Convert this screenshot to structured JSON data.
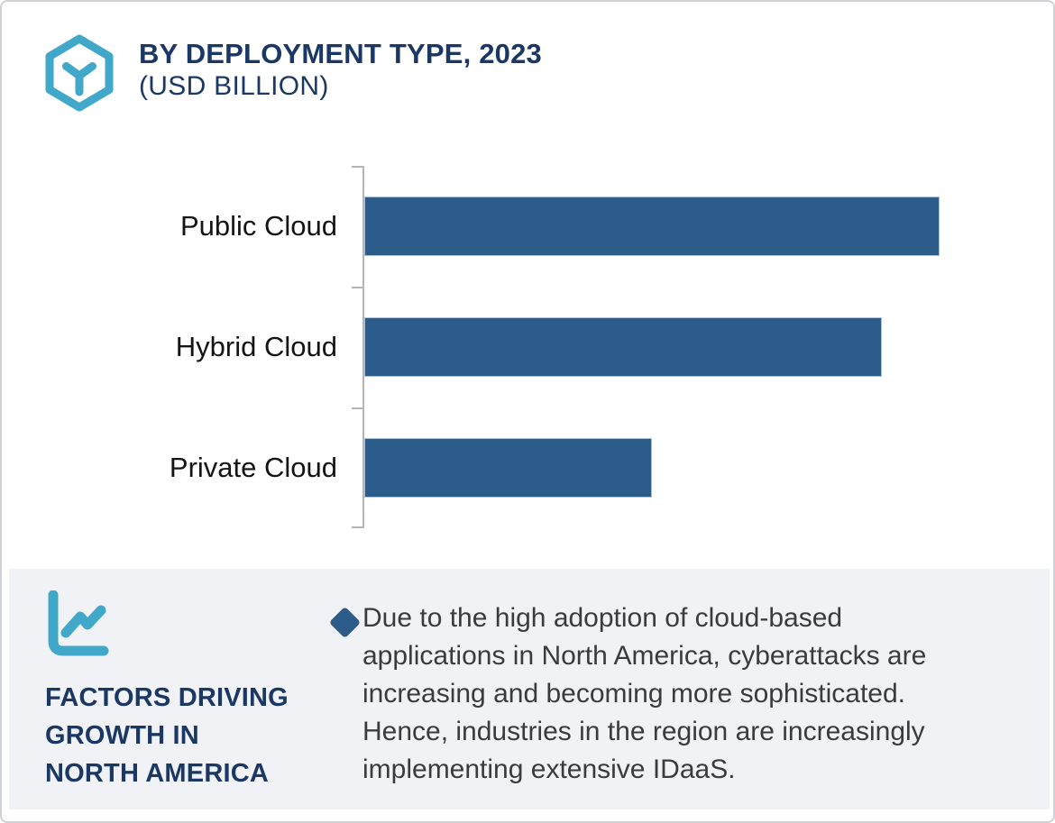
{
  "header": {
    "title": "BY DEPLOYMENT TYPE, 2023",
    "subtitle": "(USD BILLION)"
  },
  "icons": {
    "header_icon": "hexagon-cube-icon",
    "panel_icon": "line-chart-icon",
    "bullet_icon": "diamond-bullet-icon"
  },
  "colors": {
    "accent_teal": "#41a8c9",
    "navy": "#1b3865",
    "bar_blue": "#2b5c8a",
    "panel_bg": "#f1f2f6",
    "axis_gray": "#b5b5b5",
    "body_text": "#3b3b3c"
  },
  "chart_data": {
    "type": "bar",
    "orientation": "horizontal",
    "title": "BY DEPLOYMENT TYPE, 2023",
    "subtitle": "(USD BILLION)",
    "unit": "USD Billion",
    "categories": [
      "Public Cloud",
      "Hybrid Cloud",
      "Private Cloud"
    ],
    "values_pct_of_max": [
      100,
      90,
      50
    ],
    "value_labels_shown": false,
    "numeric_axis_shown": false,
    "bar_color": "#2b5c8a",
    "axis_style": "vertical category axis line on left with ticks at category boundaries, no gridlines, no legend"
  },
  "factors": {
    "heading_lines": [
      "FACTORS DRIVING",
      "GROWTH IN",
      "NORTH AMERICA"
    ],
    "bullet_lines": [
      "Due to the high adoption of cloud-based",
      "applications in North America, cyberattacks are",
      "increasing and becoming more sophisticated.",
      "Hence, industries in the region are increasingly",
      "implementing extensive IDaaS."
    ],
    "bullet_text": "Due to the high adoption of cloud-based applications in North America, cyberattacks are increasing and becoming more sophisticated. Hence, industries in the region are increasingly implementing extensive IDaaS."
  }
}
